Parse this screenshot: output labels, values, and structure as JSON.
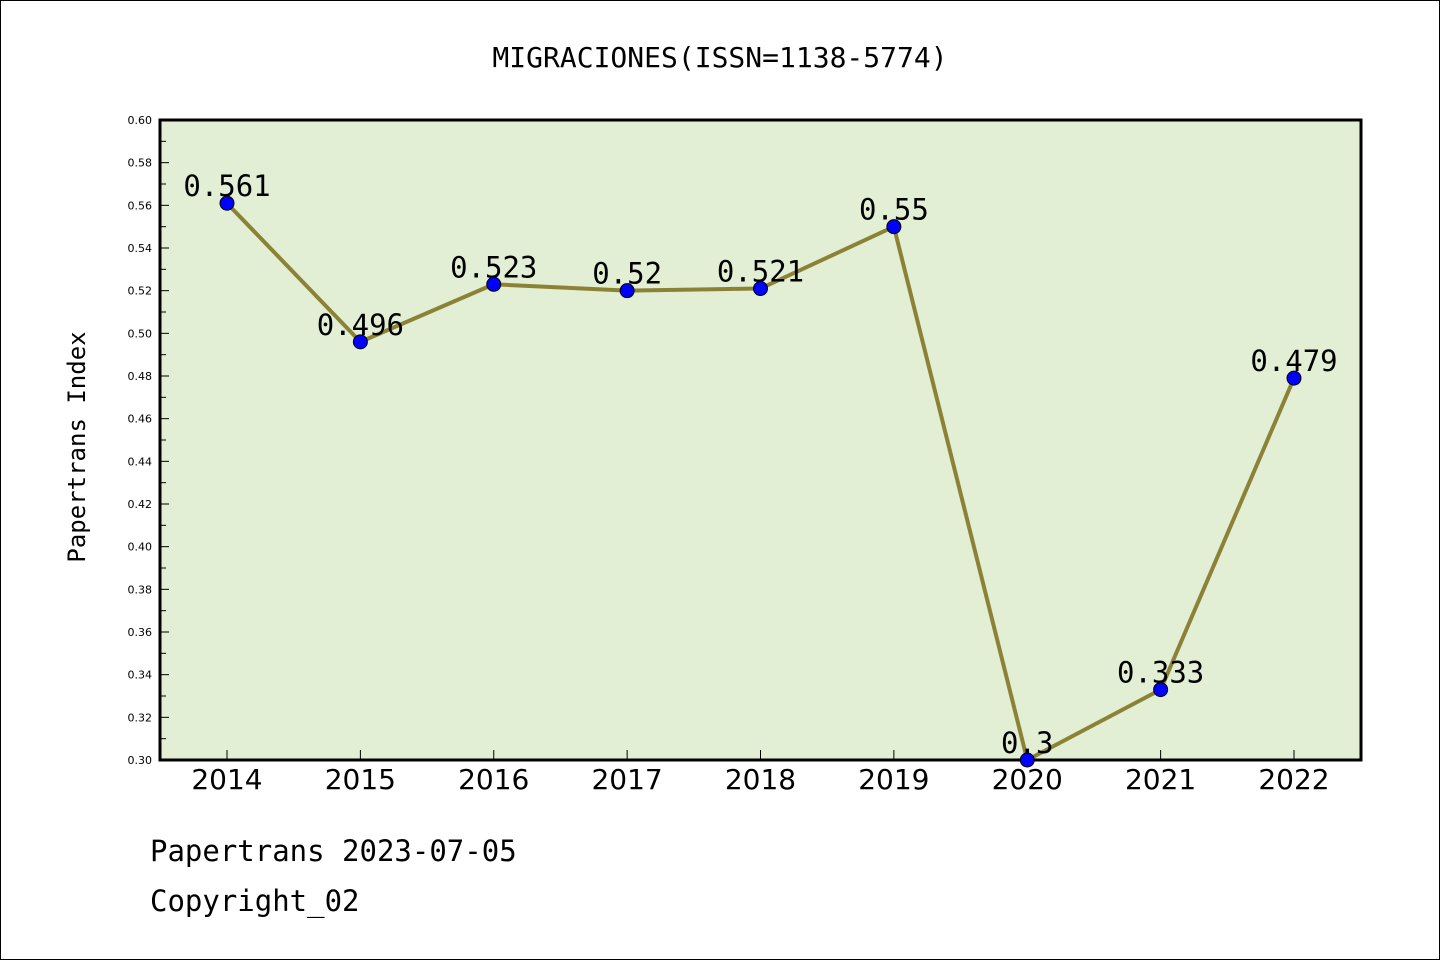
{
  "chart_data": {
    "type": "line",
    "title": "MIGRACIONES(ISSN=1138-5774)",
    "ylabel": "Papertrans Index",
    "xlabel": "",
    "x": [
      "2014",
      "2015",
      "2016",
      "2017",
      "2018",
      "2019",
      "2020",
      "2021",
      "2022"
    ],
    "series": [
      {
        "values": [
          0.561,
          0.496,
          0.523,
          0.52,
          0.521,
          0.55,
          0.3,
          0.333,
          0.479
        ],
        "labels": [
          "0.561",
          "0.496",
          "0.523",
          "0.52",
          "0.521",
          "0.55",
          "0.3",
          "0.333",
          "0.479"
        ]
      }
    ],
    "ylim": [
      0.3,
      0.6
    ],
    "yticks": [
      "0.30",
      "0.32",
      "0.34",
      "0.36",
      "0.38",
      "0.40",
      "0.42",
      "0.44",
      "0.46",
      "0.48",
      "0.50",
      "0.52",
      "0.54",
      "0.56",
      "0.58",
      "0.60"
    ],
    "grid": false,
    "colors": {
      "plot_background": "#e2efd5",
      "line": "#8b8235",
      "marker": "#0000ff"
    }
  },
  "footer": {
    "line1": "Papertrans 2023-07-05",
    "line2": "Copyright_02"
  }
}
